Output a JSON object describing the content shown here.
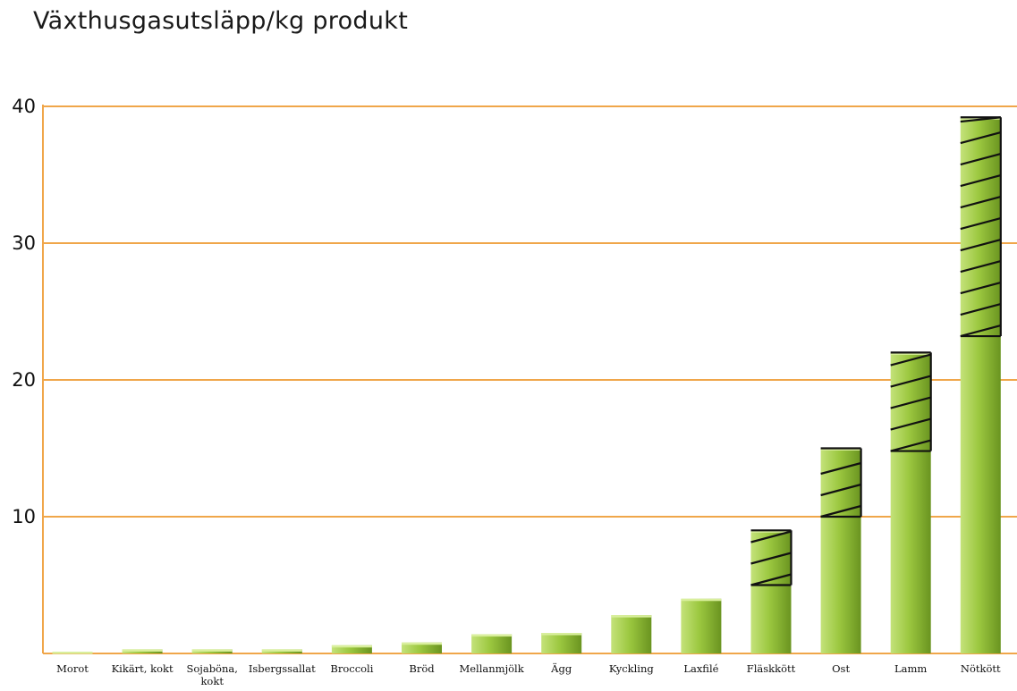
{
  "chart_data": {
    "type": "bar",
    "title": "Växthusgasutsläpp/kg produkt",
    "xlabel": "",
    "ylabel": "",
    "ylim": [
      0,
      40
    ],
    "yticks": [
      "10",
      "20",
      "30",
      "40"
    ],
    "grid": true,
    "categories": [
      [
        "Morot"
      ],
      [
        "Kikärt, kokt"
      ],
      [
        "Sojaböna,",
        "kokt"
      ],
      [
        "Isbergssallat"
      ],
      [
        "Broccoli"
      ],
      [
        "Bröd"
      ],
      [
        "Mellanmjölk"
      ],
      [
        "Ägg"
      ],
      [
        "Kyckling"
      ],
      [
        "Laxfilé"
      ],
      [
        "Fläskkött"
      ],
      [
        "Ost"
      ],
      [
        "Lamm"
      ],
      [
        "Nötkött"
      ]
    ],
    "values": [
      0.1,
      0.3,
      0.3,
      0.3,
      0.6,
      0.8,
      1.4,
      1.5,
      2.8,
      4.0,
      9.0,
      15.0,
      22.0,
      39.2
    ],
    "hatched_from": [
      null,
      null,
      null,
      null,
      null,
      null,
      null,
      null,
      null,
      null,
      5.0,
      10.0,
      14.8,
      23.2
    ],
    "colors": {
      "bar_light": "#c4e27a",
      "bar_mid": "#9cc840",
      "bar_dark": "#6a9420",
      "bar_top": "#d9ef9d",
      "grid": "#f0a64a",
      "axis": "#f0a64a",
      "hatch": "#111111"
    }
  }
}
